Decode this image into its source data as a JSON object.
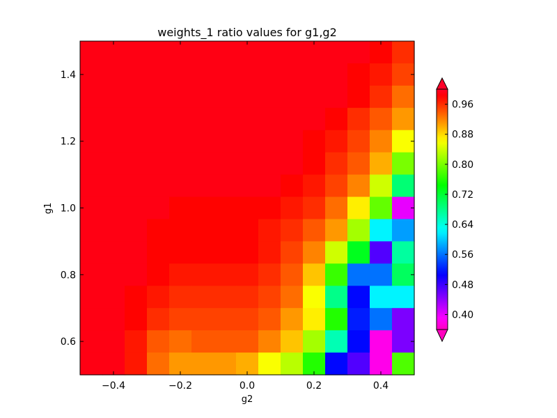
{
  "chart_data": {
    "type": "heatmap",
    "title": "weights_1 ratio values for g1,g2",
    "xlabel": "g2",
    "ylabel": "g1",
    "xlim": [
      -0.5,
      0.5
    ],
    "ylim": [
      0.5,
      1.5
    ],
    "x_ticks": [
      -0.4,
      -0.2,
      0.0,
      0.2,
      0.4
    ],
    "x_tick_labels": [
      "−0.4",
      "−0.2",
      "0.0",
      "0.2",
      "0.4"
    ],
    "y_ticks": [
      0.6,
      0.8,
      1.0,
      1.2,
      1.4
    ],
    "y_tick_labels": [
      "0.6",
      "0.8",
      "1.0",
      "1.2",
      "1.4"
    ],
    "grid": false,
    "colormap": "gist_rainbow",
    "colorbar": {
      "range": [
        0.36,
        1.0
      ],
      "extend": "both",
      "ticks": [
        0.4,
        0.48,
        0.56,
        0.64,
        0.72,
        0.8,
        0.88,
        0.96
      ],
      "tick_labels": [
        "0.40",
        "0.48",
        "0.56",
        "0.64",
        "0.72",
        "0.80",
        "0.88",
        "0.96"
      ]
    },
    "rows_note": "values[0] is the top row (g1 near 1.5), last row is bottom (g1 near 0.5); columns run g2 from -0.5 to 0.5",
    "values": [
      [
        0.99,
        0.99,
        0.99,
        0.99,
        0.99,
        0.99,
        0.99,
        0.99,
        0.99,
        0.99,
        0.99,
        0.99,
        0.99,
        0.98,
        0.96
      ],
      [
        0.99,
        0.99,
        0.99,
        0.99,
        0.99,
        0.99,
        0.99,
        0.99,
        0.99,
        0.99,
        0.99,
        0.99,
        0.98,
        0.97,
        0.95
      ],
      [
        0.99,
        0.99,
        0.99,
        0.99,
        0.99,
        0.99,
        0.99,
        0.99,
        0.99,
        0.99,
        0.99,
        0.99,
        0.98,
        0.96,
        0.93
      ],
      [
        0.99,
        0.99,
        0.99,
        0.99,
        0.99,
        0.99,
        0.99,
        0.99,
        0.99,
        0.99,
        0.99,
        0.98,
        0.96,
        0.94,
        0.91
      ],
      [
        0.99,
        0.99,
        0.99,
        0.99,
        0.99,
        0.99,
        0.99,
        0.99,
        0.99,
        0.99,
        0.98,
        0.97,
        0.95,
        0.92,
        0.86
      ],
      [
        0.99,
        0.99,
        0.99,
        0.99,
        0.99,
        0.99,
        0.99,
        0.99,
        0.99,
        0.99,
        0.98,
        0.96,
        0.94,
        0.9,
        0.8
      ],
      [
        0.99,
        0.99,
        0.99,
        0.99,
        0.99,
        0.99,
        0.99,
        0.99,
        0.99,
        0.98,
        0.97,
        0.95,
        0.92,
        0.84,
        0.69
      ],
      [
        0.99,
        0.99,
        0.99,
        0.99,
        0.98,
        0.98,
        0.98,
        0.98,
        0.98,
        0.97,
        0.96,
        0.93,
        0.87,
        0.79,
        0.4
      ],
      [
        0.99,
        0.99,
        0.99,
        0.98,
        0.98,
        0.98,
        0.98,
        0.98,
        0.97,
        0.96,
        0.94,
        0.91,
        0.82,
        0.62,
        0.58
      ],
      [
        0.99,
        0.99,
        0.99,
        0.98,
        0.98,
        0.98,
        0.98,
        0.98,
        0.97,
        0.95,
        0.92,
        0.84,
        0.73,
        0.47,
        0.67
      ],
      [
        0.99,
        0.99,
        0.99,
        0.98,
        0.97,
        0.97,
        0.97,
        0.97,
        0.96,
        0.94,
        0.89,
        0.77,
        0.56,
        0.56,
        0.7
      ],
      [
        0.99,
        0.99,
        0.98,
        0.97,
        0.96,
        0.96,
        0.96,
        0.96,
        0.95,
        0.93,
        0.86,
        0.68,
        0.51,
        0.62,
        0.62
      ],
      [
        0.99,
        0.99,
        0.98,
        0.96,
        0.95,
        0.95,
        0.95,
        0.95,
        0.94,
        0.91,
        0.87,
        0.76,
        0.52,
        0.56,
        0.45
      ],
      [
        0.99,
        0.99,
        0.97,
        0.94,
        0.93,
        0.94,
        0.94,
        0.94,
        0.92,
        0.89,
        0.82,
        0.66,
        0.51,
        0.38,
        0.45
      ],
      [
        0.99,
        0.99,
        0.97,
        0.93,
        0.91,
        0.91,
        0.91,
        0.9,
        0.86,
        0.83,
        0.76,
        0.51,
        0.47,
        0.38,
        0.78
      ]
    ]
  }
}
